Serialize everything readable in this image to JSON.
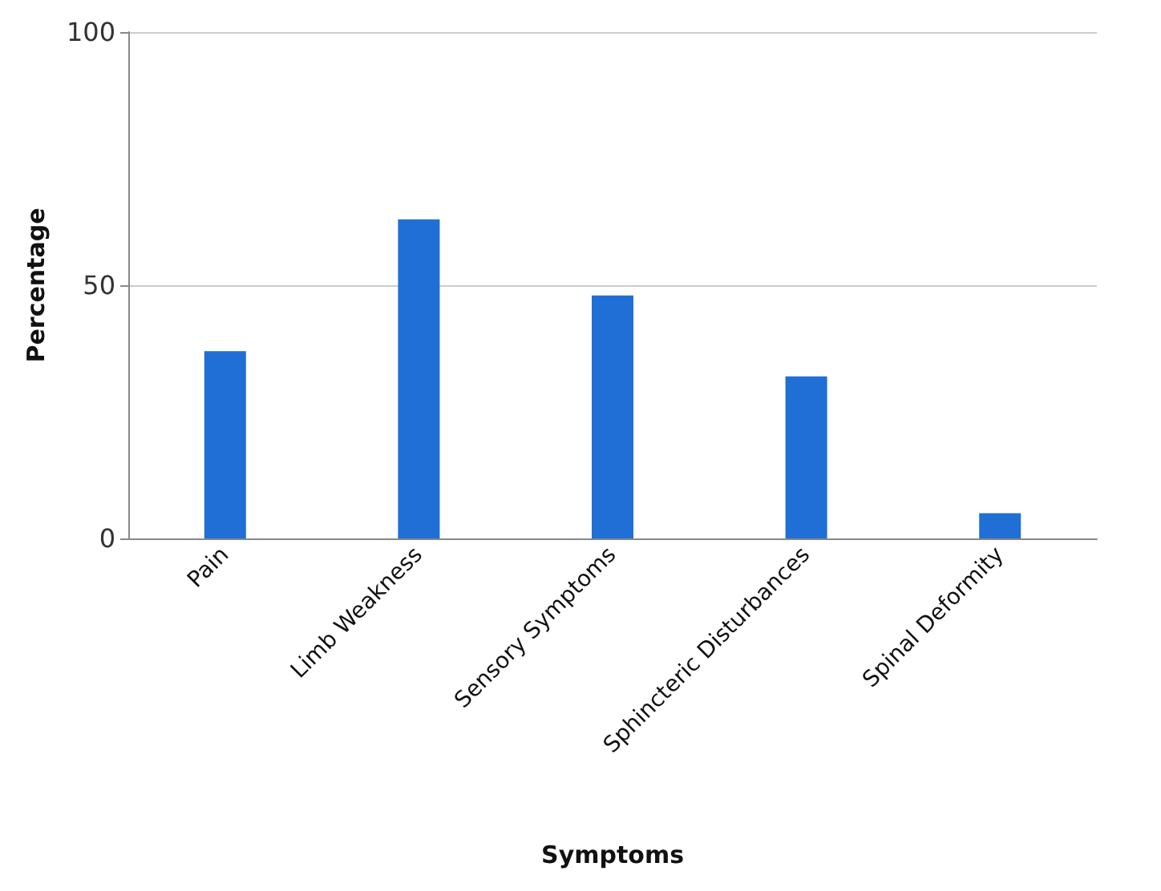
{
  "chart_data": {
    "type": "bar",
    "xlabel": "Symptoms",
    "ylabel": "Percentage",
    "categories": [
      "Pain",
      "Limb Weakness",
      "Sensory Symptoms",
      "Sphincteric Disturbances",
      "Spinal Deformity"
    ],
    "values": [
      37,
      63,
      48,
      32,
      5
    ],
    "color": "#1f6fd6",
    "ylim": [
      0,
      100
    ],
    "yticks": [
      0,
      50,
      100
    ],
    "grid": "y"
  }
}
